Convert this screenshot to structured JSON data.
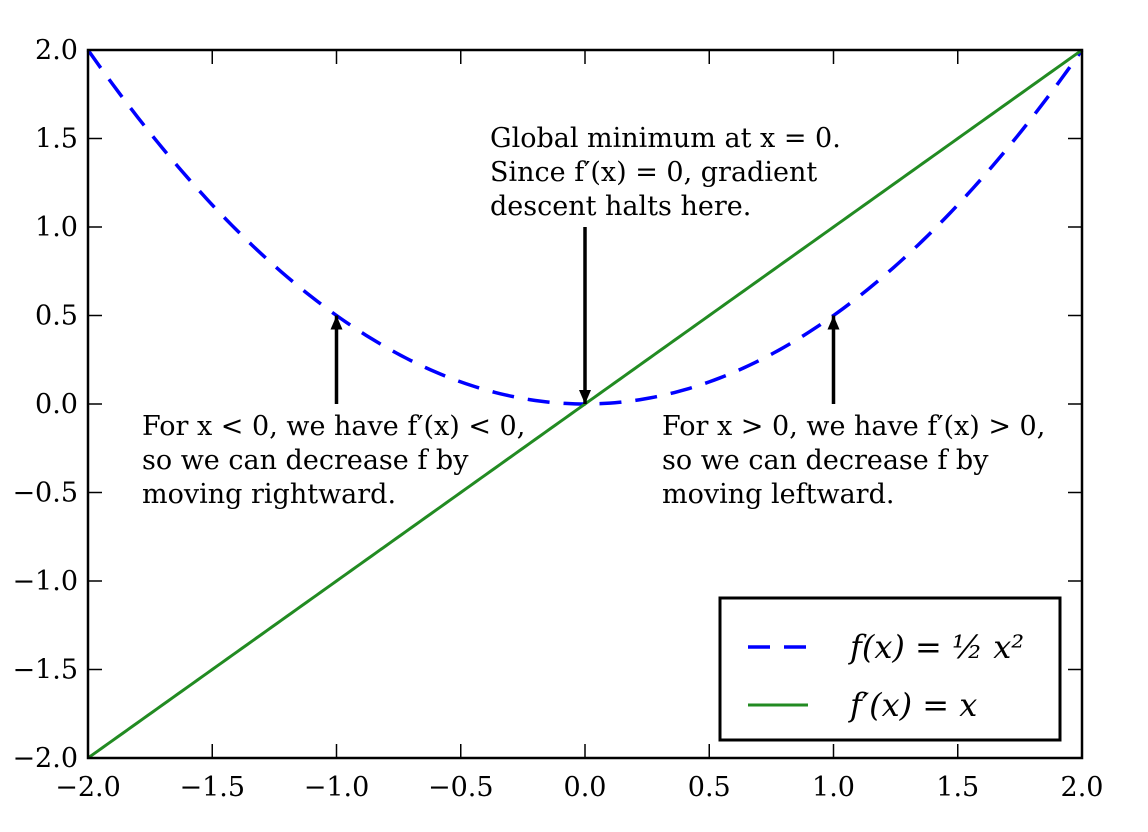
{
  "chart_data": {
    "type": "line",
    "title": "",
    "xlabel": "",
    "ylabel": "",
    "xlim": [
      -2.0,
      2.0
    ],
    "ylim": [
      -2.0,
      2.0
    ],
    "grid": false,
    "x_ticks": [
      -2.0,
      -1.5,
      -1.0,
      -0.5,
      0.0,
      0.5,
      1.0,
      1.5,
      2.0
    ],
    "x_tick_labels": [
      "−2.0",
      "−1.5",
      "−1.0",
      "−0.5",
      "0.0",
      "0.5",
      "1.0",
      "1.5",
      "2.0"
    ],
    "y_ticks": [
      2.0,
      1.5,
      1.0,
      0.5,
      0.0,
      -0.5,
      -1.0,
      -1.5,
      -2.0
    ],
    "y_tick_labels": [
      "2.0",
      "1.5",
      "1.0",
      "0.5",
      "0.0",
      "−0.5",
      "−1.0",
      "−1.5",
      "−2.0"
    ],
    "series": [
      {
        "name": "f(x) = ½ x²",
        "function": "0.5*x^2",
        "x_range": [
          -2.0,
          2.0
        ],
        "color": "#0000ff",
        "style": "dashed"
      },
      {
        "name": "f′(x) = x",
        "function": "x",
        "x_range": [
          -2.0,
          2.0
        ],
        "color": "#228b22",
        "style": "solid"
      }
    ],
    "legend": {
      "position": "bottom-right",
      "entries": [
        "f(x) = ½ x²",
        "f′(x) = x"
      ]
    },
    "annotations": [
      {
        "lines": [
          "Global minimum at x = 0.",
          "Since f′(x) = 0, gradient",
          "descent halts here."
        ],
        "arrow_from": [
          0.0,
          1.0
        ],
        "arrow_to": [
          0.0,
          0.0
        ]
      },
      {
        "lines": [
          "For x < 0, we have f′(x) < 0,",
          "so we can decrease f by",
          "moving rightward."
        ],
        "arrow_from": [
          -1.0,
          0.0
        ],
        "arrow_to": [
          -1.0,
          0.5
        ]
      },
      {
        "lines": [
          "For x > 0, we have f′(x) > 0,",
          "so we can decrease f by",
          "moving leftward."
        ],
        "arrow_from": [
          1.0,
          0.0
        ],
        "arrow_to": [
          1.0,
          0.5
        ]
      }
    ]
  }
}
